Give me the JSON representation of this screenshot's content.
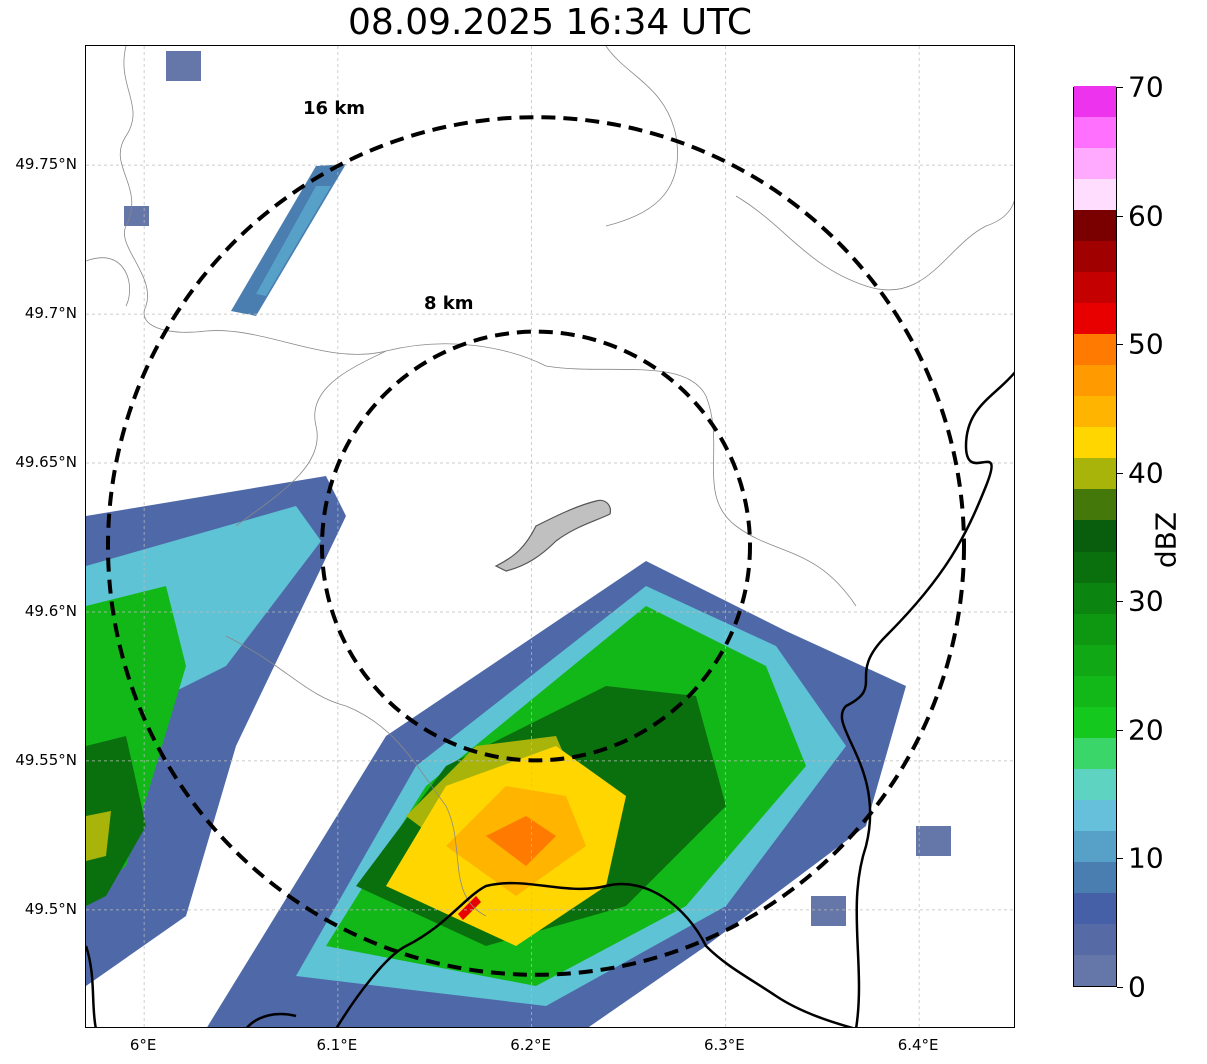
{
  "title": "08.09.2025 16:34 UTC",
  "map": {
    "lon_range": [
      5.97,
      6.45
    ],
    "lat_range": [
      49.46,
      49.79
    ],
    "x_ticks": [
      {
        "value": 6.0,
        "label": "6°E"
      },
      {
        "value": 6.1,
        "label": "6.1°E"
      },
      {
        "value": 6.2,
        "label": "6.2°E"
      },
      {
        "value": 6.3,
        "label": "6.3°E"
      },
      {
        "value": 6.4,
        "label": "6.4°E"
      }
    ],
    "y_ticks": [
      {
        "value": 49.75,
        "label": "49.75°N"
      },
      {
        "value": 49.7,
        "label": "49.7°N"
      },
      {
        "value": 49.65,
        "label": "49.65°N"
      },
      {
        "value": 49.6,
        "label": "49.6°N"
      },
      {
        "value": 49.55,
        "label": "49.55°N"
      },
      {
        "value": 49.5,
        "label": "49.5°N"
      }
    ],
    "rings": [
      {
        "label": "8 km",
        "radius_km": 8
      },
      {
        "label": "16 km",
        "radius_km": 16
      }
    ],
    "gridlines": true
  },
  "colorbar": {
    "label": "dBZ",
    "ticks": [
      0,
      10,
      20,
      30,
      40,
      50,
      60,
      70
    ],
    "tick_labels": [
      "0",
      "10",
      "20",
      "30",
      "40",
      "50",
      "60",
      "70"
    ],
    "colors": [
      "#6576a8",
      "#566aa6",
      "#4560a6",
      "#4a7db0",
      "#57a0c8",
      "#66c0dc",
      "#5fd3c2",
      "#3ad66a",
      "#15c81e",
      "#12b818",
      "#10a815",
      "#0e9812",
      "#0b8410",
      "#0a700e",
      "#085e0c",
      "#45780a",
      "#a8b40a",
      "#ffd600",
      "#ffb400",
      "#ff9a00",
      "#ff7a00",
      "#e80000",
      "#c40000",
      "#a00000",
      "#7a0000",
      "#ffddff",
      "#ffaaff",
      "#ff70ff",
      "#ee33ee"
    ]
  }
}
